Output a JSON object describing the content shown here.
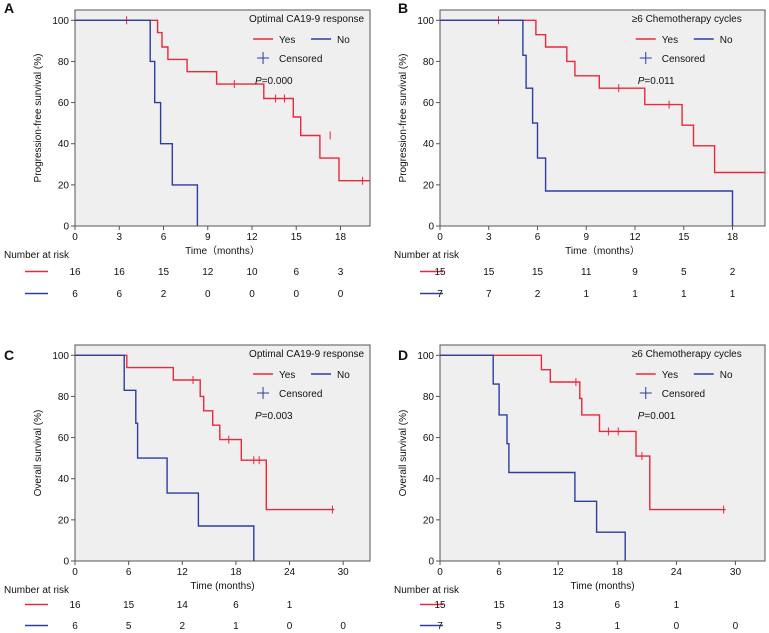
{
  "colors": {
    "yes": "#e8283c",
    "no": "#2a3f9e",
    "plot_bg": "#efefef",
    "frame": "#555555",
    "text": "#111111"
  },
  "chart_data": [
    {
      "id": "A",
      "panel_label": "A",
      "type": "line",
      "subtype": "kaplan-meier",
      "ylabel": "Progression-free survival (%)",
      "xlabel": "Time（months）",
      "xlim": [
        0,
        20
      ],
      "ylim": [
        0,
        105
      ],
      "xticks": [
        0,
        3,
        6,
        9,
        12,
        15,
        18
      ],
      "yticks": [
        0,
        20,
        40,
        60,
        80,
        100
      ],
      "legend": {
        "title": "Optimal CA19-9 response",
        "yes_label": "Yes",
        "no_label": "No",
        "censored_label": "Censored"
      },
      "p_label": "P",
      "p_value": "=0.000",
      "series": [
        {
          "name": "Yes",
          "color_key": "yes",
          "steps": [
            [
              0,
              100
            ],
            [
              5.6,
              100
            ],
            [
              5.6,
              94
            ],
            [
              5.9,
              94
            ],
            [
              5.9,
              87
            ],
            [
              6.3,
              87
            ],
            [
              6.3,
              81
            ],
            [
              7.6,
              81
            ],
            [
              7.6,
              75
            ],
            [
              9.6,
              75
            ],
            [
              9.6,
              69
            ],
            [
              12.8,
              69
            ],
            [
              12.8,
              62
            ],
            [
              14.8,
              62
            ],
            [
              14.8,
              53
            ],
            [
              15.3,
              53
            ],
            [
              15.3,
              44
            ],
            [
              16.6,
              44
            ],
            [
              16.6,
              33
            ],
            [
              17.9,
              33
            ],
            [
              17.9,
              22
            ],
            [
              20,
              22
            ]
          ],
          "censors": [
            [
              3.5,
              100
            ],
            [
              10.8,
              69
            ],
            [
              13.6,
              62
            ],
            [
              14.2,
              62
            ],
            [
              17.3,
              44
            ],
            [
              19.5,
              22
            ]
          ]
        },
        {
          "name": "No",
          "color_key": "no",
          "steps": [
            [
              0,
              100
            ],
            [
              5.1,
              100
            ],
            [
              5.1,
              80
            ],
            [
              5.4,
              80
            ],
            [
              5.4,
              60
            ],
            [
              5.8,
              60
            ],
            [
              5.8,
              40
            ],
            [
              6.6,
              40
            ],
            [
              6.6,
              20
            ],
            [
              8.3,
              20
            ],
            [
              8.3,
              0
            ]
          ],
          "censors": []
        }
      ],
      "risk_table": {
        "label": "Number at risk",
        "times": [
          0,
          3,
          6,
          9,
          12,
          15,
          18
        ],
        "rows": [
          {
            "group": "Yes",
            "color_key": "yes",
            "counts": [
              "16",
              "16",
              "15",
              "12",
              "10",
              "6",
              "3"
            ]
          },
          {
            "group": "No",
            "color_key": "no",
            "counts": [
              "6",
              "6",
              "2",
              "0",
              "0",
              "0",
              "0"
            ]
          }
        ]
      }
    },
    {
      "id": "B",
      "panel_label": "B",
      "type": "line",
      "subtype": "kaplan-meier",
      "ylabel": "Progression-free survival (%)",
      "xlabel": "Time（months）",
      "xlim": [
        0,
        20
      ],
      "ylim": [
        0,
        105
      ],
      "xticks": [
        0,
        3,
        6,
        9,
        12,
        15,
        18
      ],
      "yticks": [
        0,
        20,
        40,
        60,
        80,
        100
      ],
      "legend": {
        "title": "≥6 Chemotherapy cycles",
        "yes_label": "Yes",
        "no_label": "No",
        "censored_label": "Censored"
      },
      "p_label": "P",
      "p_value": "=0.011",
      "series": [
        {
          "name": "Yes",
          "color_key": "yes",
          "steps": [
            [
              0,
              100
            ],
            [
              5.9,
              100
            ],
            [
              5.9,
              93
            ],
            [
              6.5,
              93
            ],
            [
              6.5,
              87
            ],
            [
              7.8,
              87
            ],
            [
              7.8,
              80
            ],
            [
              8.3,
              80
            ],
            [
              8.3,
              73
            ],
            [
              9.8,
              73
            ],
            [
              9.8,
              67
            ],
            [
              12.6,
              67
            ],
            [
              12.6,
              59
            ],
            [
              14.9,
              59
            ],
            [
              14.9,
              49
            ],
            [
              15.6,
              49
            ],
            [
              15.6,
              39
            ],
            [
              16.9,
              39
            ],
            [
              16.9,
              26
            ],
            [
              20,
              26
            ]
          ],
          "censors": [
            [
              3.6,
              100
            ],
            [
              11.0,
              67
            ],
            [
              14.1,
              59
            ]
          ]
        },
        {
          "name": "No",
          "color_key": "no",
          "steps": [
            [
              0,
              100
            ],
            [
              5.1,
              100
            ],
            [
              5.1,
              83
            ],
            [
              5.3,
              83
            ],
            [
              5.3,
              67
            ],
            [
              5.7,
              67
            ],
            [
              5.7,
              50
            ],
            [
              6.0,
              50
            ],
            [
              6.0,
              33
            ],
            [
              6.5,
              33
            ],
            [
              6.5,
              17
            ],
            [
              18.0,
              17
            ],
            [
              18.0,
              0
            ]
          ],
          "censors": []
        }
      ],
      "risk_table": {
        "label": "Number at risk",
        "times": [
          0,
          3,
          6,
          9,
          12,
          15,
          18
        ],
        "rows": [
          {
            "group": "Yes",
            "color_key": "yes",
            "counts": [
              "15",
              "15",
              "15",
              "11",
              "9",
              "5",
              "2"
            ]
          },
          {
            "group": "No",
            "color_key": "no",
            "counts": [
              "7",
              "7",
              "2",
              "1",
              "1",
              "1",
              "1"
            ]
          }
        ]
      }
    },
    {
      "id": "C",
      "panel_label": "C",
      "type": "line",
      "subtype": "kaplan-meier",
      "ylabel": "Overall survival (%)",
      "xlabel": "Time (months)",
      "xlim": [
        0,
        33
      ],
      "ylim": [
        0,
        105
      ],
      "xticks": [
        0,
        6,
        12,
        18,
        24,
        30
      ],
      "yticks": [
        0,
        20,
        40,
        60,
        80,
        100
      ],
      "legend": {
        "title": "Optimal CA19-9 response",
        "yes_label": "Yes",
        "no_label": "No",
        "censored_label": "Censored"
      },
      "p_label": "P",
      "p_value": "=0.003",
      "series": [
        {
          "name": "Yes",
          "color_key": "yes",
          "steps": [
            [
              0,
              100
            ],
            [
              5.8,
              100
            ],
            [
              5.8,
              94
            ],
            [
              11.0,
              94
            ],
            [
              11.0,
              88
            ],
            [
              14.0,
              88
            ],
            [
              14.0,
              80
            ],
            [
              14.4,
              80
            ],
            [
              14.4,
              73
            ],
            [
              15.4,
              73
            ],
            [
              15.4,
              66
            ],
            [
              16.2,
              66
            ],
            [
              16.2,
              59
            ],
            [
              18.6,
              59
            ],
            [
              18.6,
              49
            ],
            [
              21.4,
              49
            ],
            [
              21.4,
              25
            ],
            [
              29,
              25
            ]
          ],
          "censors": [
            [
              13.2,
              88
            ],
            [
              17.2,
              59
            ],
            [
              20.0,
              49
            ],
            [
              20.6,
              49
            ],
            [
              28.8,
              25
            ]
          ]
        },
        {
          "name": "No",
          "color_key": "no",
          "steps": [
            [
              0,
              100
            ],
            [
              5.5,
              100
            ],
            [
              5.5,
              83
            ],
            [
              6.8,
              83
            ],
            [
              6.8,
              67
            ],
            [
              7.0,
              67
            ],
            [
              7.0,
              50
            ],
            [
              10.3,
              50
            ],
            [
              10.3,
              33
            ],
            [
              13.8,
              33
            ],
            [
              13.8,
              17
            ],
            [
              20.0,
              17
            ],
            [
              20.0,
              0
            ]
          ],
          "censors": []
        }
      ],
      "risk_table": {
        "label": "Number at risk",
        "times": [
          0,
          6,
          12,
          18,
          24,
          30
        ],
        "rows": [
          {
            "group": "Yes",
            "color_key": "yes",
            "counts": [
              "16",
              "15",
              "14",
              "6",
              "1",
              ""
            ]
          },
          {
            "group": "No",
            "color_key": "no",
            "counts": [
              "6",
              "5",
              "2",
              "1",
              "0",
              "0"
            ]
          }
        ]
      }
    },
    {
      "id": "D",
      "panel_label": "D",
      "type": "line",
      "subtype": "kaplan-meier",
      "ylabel": "Overall survival (%)",
      "xlabel": "Time (months)",
      "xlim": [
        0,
        33
      ],
      "ylim": [
        0,
        105
      ],
      "xticks": [
        0,
        6,
        12,
        18,
        24,
        30
      ],
      "yticks": [
        0,
        20,
        40,
        60,
        80,
        100
      ],
      "legend": {
        "title": "≥6 Chemotherapy cycles",
        "yes_label": "Yes",
        "no_label": "No",
        "censored_label": "Censored"
      },
      "p_label": "P",
      "p_value": "=0.001",
      "series": [
        {
          "name": "Yes",
          "color_key": "yes",
          "steps": [
            [
              0,
              100
            ],
            [
              10.3,
              100
            ],
            [
              10.3,
              93
            ],
            [
              11.2,
              93
            ],
            [
              11.2,
              87
            ],
            [
              14.2,
              87
            ],
            [
              14.2,
              79
            ],
            [
              14.4,
              79
            ],
            [
              14.4,
              71
            ],
            [
              16.2,
              71
            ],
            [
              16.2,
              63
            ],
            [
              19.9,
              63
            ],
            [
              19.9,
              51
            ],
            [
              21.3,
              51
            ],
            [
              21.3,
              25
            ],
            [
              29,
              25
            ]
          ],
          "censors": [
            [
              13.8,
              87
            ],
            [
              17.1,
              63
            ],
            [
              18.1,
              63
            ],
            [
              20.5,
              51
            ],
            [
              28.8,
              25
            ]
          ]
        },
        {
          "name": "No",
          "color_key": "no",
          "steps": [
            [
              0,
              100
            ],
            [
              5.4,
              100
            ],
            [
              5.4,
              86
            ],
            [
              6.0,
              86
            ],
            [
              6.0,
              71
            ],
            [
              6.8,
              71
            ],
            [
              6.8,
              57
            ],
            [
              7.0,
              57
            ],
            [
              7.0,
              43
            ],
            [
              13.7,
              43
            ],
            [
              13.7,
              29
            ],
            [
              15.9,
              29
            ],
            [
              15.9,
              14
            ],
            [
              18.8,
              14
            ],
            [
              18.8,
              0
            ]
          ],
          "censors": []
        }
      ],
      "risk_table": {
        "label": "Number at risk",
        "times": [
          0,
          6,
          12,
          18,
          24,
          30
        ],
        "rows": [
          {
            "group": "Yes",
            "color_key": "yes",
            "counts": [
              "15",
              "15",
              "13",
              "6",
              "1",
              ""
            ]
          },
          {
            "group": "No",
            "color_key": "no",
            "counts": [
              "7",
              "5",
              "3",
              "1",
              "0",
              "0"
            ]
          }
        ]
      }
    }
  ]
}
